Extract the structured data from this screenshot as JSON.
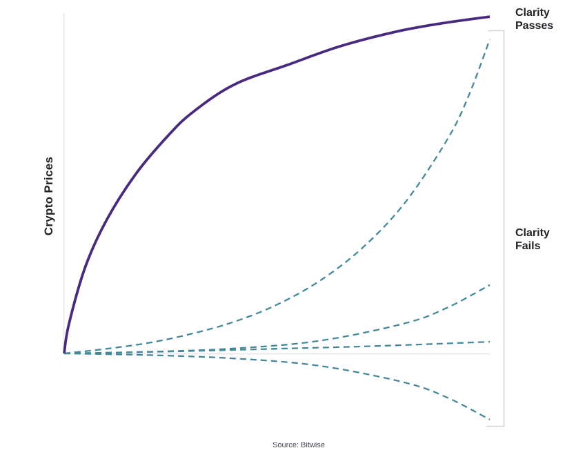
{
  "labels": {
    "y_axis": "Crypto Prices",
    "clarity_passes": "Clarity\nPasses",
    "clarity_fails": "Clarity\nFails",
    "source": "Source: Bitwise"
  },
  "colors": {
    "passes_line": "#482a80",
    "fails_line": "#44899a",
    "axis_line": "#e9e9e9",
    "bracket": "#d4d4d4",
    "label_text": "#202226",
    "source_text": "#474756"
  },
  "chart_data": {
    "type": "line",
    "title": "",
    "xlabel": "",
    "ylabel": "Crypto Prices",
    "x_axis": {
      "range_norm": [
        0,
        1
      ],
      "ticks": []
    },
    "y_axis": {
      "range_index": [
        -25,
        105
      ],
      "baseline": 0,
      "ticks": []
    },
    "grid": false,
    "legend": "none",
    "annotations": [
      {
        "text": "Clarity Passes",
        "position": "top-right",
        "refers_to": "solid purple curve"
      },
      {
        "text": "Clarity Fails",
        "position": "middle-right",
        "refers_to": "bracketed range of dashed curves"
      },
      {
        "text": "Source: Bitwise",
        "position": "bottom-center"
      }
    ],
    "series": [
      {
        "id": "clarity-passes",
        "name": "Clarity Passes",
        "line_style": "solid",
        "color": "#482a80",
        "width": 3.8,
        "x": [
          0,
          0.011,
          0.05,
          0.1,
          0.17,
          0.245,
          0.303,
          0.4,
          0.53,
          0.65,
          0.78,
          0.887,
          1
        ],
        "y": [
          0,
          8.7,
          26,
          40,
          54,
          65.3,
          72.3,
          80.5,
          86.6,
          92,
          96.3,
          98.8,
          100.8
        ]
      },
      {
        "id": "clarity-fails-surge",
        "name": "Clarity Fails - strong rally",
        "line_style": "dashed",
        "color": "#44899a",
        "width": 2.3,
        "x": [
          0,
          0.1,
          0.2,
          0.3,
          0.4,
          0.5,
          0.6,
          0.7,
          0.8,
          0.9,
          0.95,
          1
        ],
        "y": [
          0,
          1.4,
          3.2,
          5.9,
          9.5,
          14.6,
          21.7,
          31.5,
          45,
          64,
          77,
          94
        ]
      },
      {
        "id": "clarity-fails-moderate",
        "name": "Clarity Fails - moderate rise",
        "line_style": "dashed",
        "color": "#44899a",
        "width": 2.3,
        "x": [
          0,
          0.2,
          0.4,
          0.6,
          0.8,
          0.9,
          1
        ],
        "y": [
          0,
          0.5,
          1.5,
          3.8,
          9,
          13.7,
          20.5
        ]
      },
      {
        "id": "clarity-fails-flat",
        "name": "Clarity Fails - slight rise",
        "line_style": "dashed",
        "color": "#44899a",
        "width": 2.3,
        "x": [
          0,
          0.25,
          0.5,
          0.75,
          1
        ],
        "y": [
          0,
          0.6,
          1.4,
          2.3,
          3.5
        ]
      },
      {
        "id": "clarity-fails-decline",
        "name": "Clarity Fails - decline",
        "line_style": "dashed",
        "color": "#44899a",
        "width": 2.3,
        "x": [
          0,
          0.2,
          0.4,
          0.6,
          0.8,
          0.9,
          1
        ],
        "y": [
          0,
          -0.5,
          -1.5,
          -3.7,
          -8.7,
          -13.2,
          -19.8
        ]
      }
    ]
  }
}
